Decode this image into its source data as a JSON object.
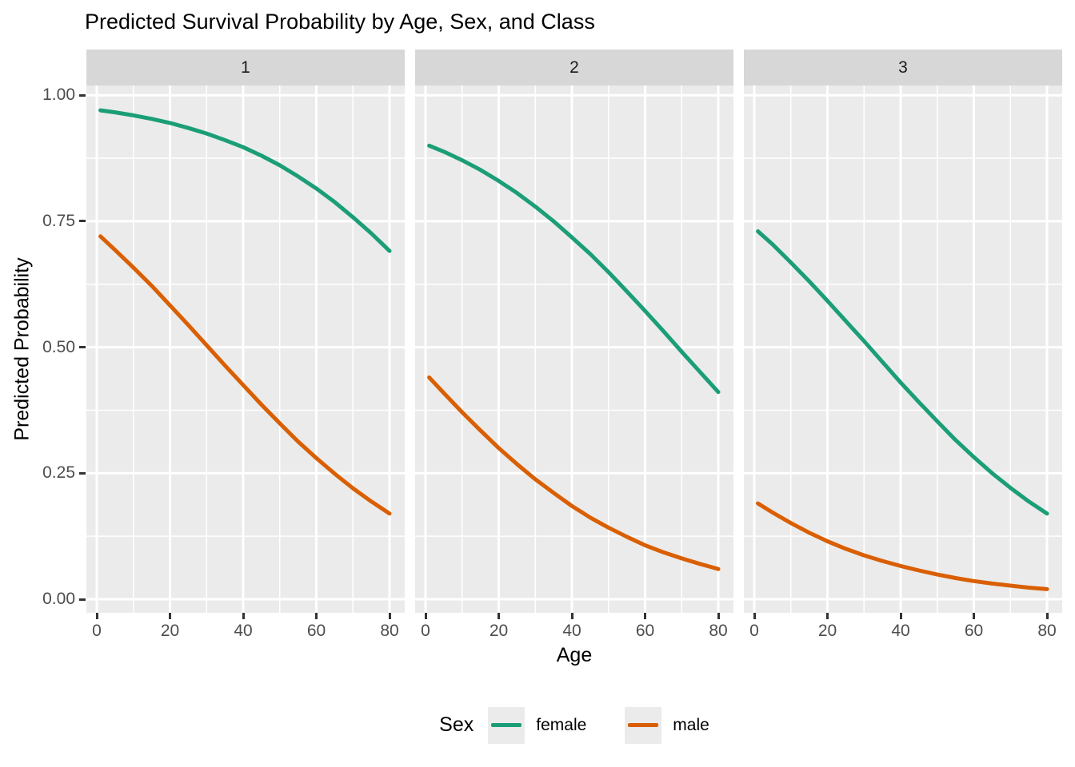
{
  "chart_data": {
    "type": "line",
    "title": "Predicted Survival Probability by Age, Sex, and Class",
    "xlabel": "Age",
    "ylabel": "Predicted Probability",
    "facets": [
      "1",
      "2",
      "3"
    ],
    "x_axis": {
      "range": [
        0,
        80
      ],
      "ticks_major": [
        0,
        20,
        40,
        60,
        80
      ],
      "ticks_minor": [
        10,
        30,
        50,
        70
      ],
      "tick_labels": [
        "0",
        "20",
        "40",
        "60",
        "80"
      ]
    },
    "y_axis": {
      "range": [
        0,
        1
      ],
      "ticks_major": [
        0,
        0.25,
        0.5,
        0.75,
        1
      ],
      "ticks_minor": [
        0.125,
        0.375,
        0.625,
        0.875
      ],
      "tick_labels": [
        "0.00",
        "0.25",
        "0.50",
        "0.75",
        "1.00"
      ]
    },
    "legend": {
      "title": "Sex",
      "position": "bottom",
      "entries": [
        {
          "label": "female",
          "color": "#1B9E77"
        },
        {
          "label": "male",
          "color": "#D95F02"
        }
      ]
    },
    "style": {
      "panel_bg": "#EBEBEB",
      "strip_bg": "#D7D7D7",
      "grid_color": "#FFFFFF",
      "axis_text_color": "#4D4D4D",
      "strip_text_color": "#1A1A1A",
      "tick_mark_color": "#333333",
      "female_color": "#1B9E77",
      "male_color": "#D95F02"
    },
    "ages": [
      1,
      5,
      10,
      15,
      20,
      25,
      30,
      35,
      40,
      45,
      50,
      55,
      60,
      65,
      70,
      75,
      80
    ],
    "series": [
      {
        "facet": "1",
        "sex": "female",
        "color": "#1B9E77",
        "values": [
          0.97,
          0.966,
          0.96,
          0.953,
          0.945,
          0.935,
          0.924,
          0.911,
          0.897,
          0.88,
          0.861,
          0.839,
          0.815,
          0.788,
          0.758,
          0.726,
          0.691
        ]
      },
      {
        "facet": "1",
        "sex": "male",
        "color": "#D95F02",
        "values": [
          0.72,
          0.693,
          0.658,
          0.622,
          0.583,
          0.544,
          0.504,
          0.464,
          0.425,
          0.386,
          0.349,
          0.313,
          0.28,
          0.249,
          0.22,
          0.194,
          0.17
        ]
      },
      {
        "facet": "2",
        "sex": "female",
        "color": "#1B9E77",
        "values": [
          0.9,
          0.888,
          0.871,
          0.852,
          0.83,
          0.806,
          0.779,
          0.75,
          0.718,
          0.685,
          0.649,
          0.611,
          0.572,
          0.532,
          0.491,
          0.451,
          0.411
        ]
      },
      {
        "facet": "2",
        "sex": "male",
        "color": "#D95F02",
        "values": [
          0.44,
          0.409,
          0.371,
          0.335,
          0.3,
          0.268,
          0.238,
          0.211,
          0.185,
          0.162,
          0.142,
          0.124,
          0.107,
          0.093,
          0.081,
          0.07,
          0.06
        ]
      },
      {
        "facet": "3",
        "sex": "female",
        "color": "#1B9E77",
        "values": [
          0.73,
          0.704,
          0.668,
          0.631,
          0.592,
          0.552,
          0.512,
          0.471,
          0.43,
          0.391,
          0.353,
          0.316,
          0.282,
          0.25,
          0.221,
          0.194,
          0.17
        ]
      },
      {
        "facet": "3",
        "sex": "male",
        "color": "#D95F02",
        "values": [
          0.19,
          0.172,
          0.151,
          0.132,
          0.115,
          0.1,
          0.087,
          0.076,
          0.066,
          0.057,
          0.049,
          0.042,
          0.036,
          0.031,
          0.027,
          0.023,
          0.02
        ]
      }
    ]
  }
}
